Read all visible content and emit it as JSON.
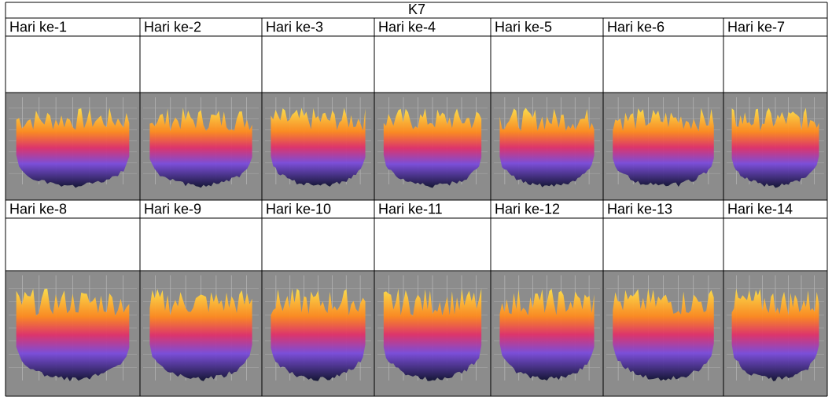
{
  "table": {
    "title": "K7",
    "rows": [
      [
        "Hari ke-1",
        "Hari ke-2",
        "Hari ke-3",
        "Hari ke-4",
        "Hari ke-5",
        "Hari ke-6",
        "Hari ke-7"
      ],
      [
        "Hari ke-8",
        "Hari ke-9",
        "Hari ke-10",
        "Hari ke-11",
        "Hari ke-12",
        "Hari ke-13",
        "Hari ke-14"
      ]
    ]
  }
}
